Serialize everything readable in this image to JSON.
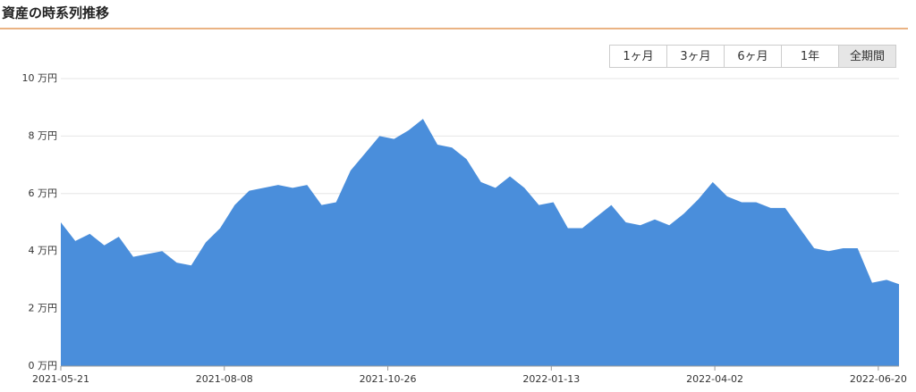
{
  "title": "資産の時系列推移",
  "range_buttons": [
    "1ヶ月",
    "3ヶ月",
    "6ヶ月",
    "1年",
    "全期間"
  ],
  "chart_data": {
    "type": "area",
    "color": "#4a8edb",
    "grid": true,
    "x": [
      "2021-05-21",
      "2021-05-28",
      "2021-06-04",
      "2021-06-11",
      "2021-06-18",
      "2021-06-25",
      "2021-07-02",
      "2021-07-09",
      "2021-07-16",
      "2021-07-23",
      "2021-07-30",
      "2021-08-06",
      "2021-08-13",
      "2021-08-20",
      "2021-08-27",
      "2021-09-03",
      "2021-09-10",
      "2021-09-17",
      "2021-09-24",
      "2021-10-01",
      "2021-10-08",
      "2021-10-15",
      "2021-10-22",
      "2021-10-29",
      "2021-11-05",
      "2021-11-12",
      "2021-11-19",
      "2021-11-26",
      "2021-12-03",
      "2021-12-10",
      "2021-12-17",
      "2021-12-24",
      "2021-12-31",
      "2022-01-07",
      "2022-01-14",
      "2022-01-21",
      "2022-01-28",
      "2022-02-04",
      "2022-02-11",
      "2022-02-18",
      "2022-02-25",
      "2022-03-04",
      "2022-03-11",
      "2022-03-18",
      "2022-03-25",
      "2022-04-01",
      "2022-04-08",
      "2022-04-15",
      "2022-04-22",
      "2022-04-29",
      "2022-05-06",
      "2022-05-13",
      "2022-05-20",
      "2022-05-27",
      "2022-06-03",
      "2022-06-10",
      "2022-06-17",
      "2022-06-24",
      "2022-06-30"
    ],
    "values": [
      5.0,
      4.35,
      4.6,
      4.2,
      4.5,
      3.8,
      3.9,
      4.0,
      3.6,
      3.5,
      4.3,
      4.8,
      5.6,
      6.1,
      6.2,
      6.3,
      6.2,
      6.3,
      5.6,
      5.7,
      6.8,
      7.4,
      8.0,
      7.9,
      8.2,
      8.6,
      7.7,
      7.6,
      7.2,
      6.4,
      6.2,
      6.6,
      6.2,
      5.6,
      5.7,
      4.8,
      4.8,
      5.2,
      5.6,
      5.0,
      4.9,
      5.1,
      4.9,
      5.3,
      5.8,
      6.4,
      5.9,
      5.7,
      5.7,
      5.5,
      5.5,
      4.8,
      4.1,
      4.0,
      4.1,
      4.1,
      2.9,
      3.0,
      2.85
    ],
    "xlim": [
      "2021-05-21",
      "2022-06-30"
    ],
    "xticks": [
      "2021-05-21",
      "2021-08-08",
      "2021-10-26",
      "2022-01-13",
      "2022-04-02",
      "2022-06-20"
    ],
    "ylim": [
      0,
      10
    ],
    "yticks": [
      {
        "value": 0,
        "label": "0 万円"
      },
      {
        "value": 2,
        "label": "2 万円"
      },
      {
        "value": 4,
        "label": "4 万円"
      },
      {
        "value": 6,
        "label": "6 万円"
      },
      {
        "value": 8,
        "label": "8 万円"
      },
      {
        "value": 10,
        "label": "10 万円"
      }
    ]
  }
}
